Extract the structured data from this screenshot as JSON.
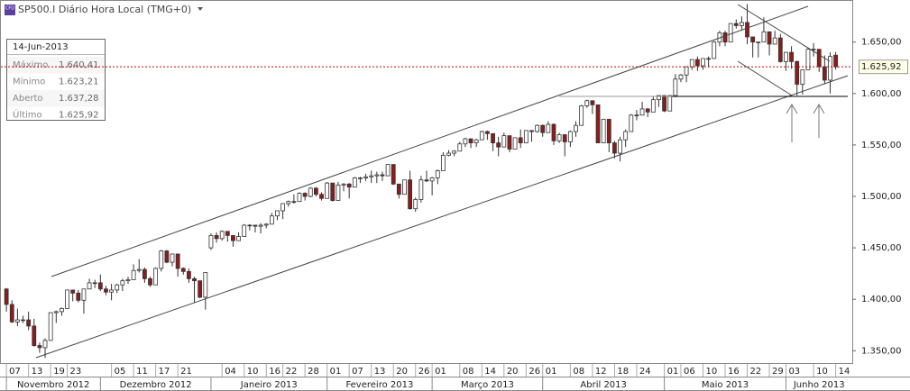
{
  "chart_data": {
    "type": "candlestick",
    "title": "SP500.I Diário Hora Local (TMG+0)",
    "icon_label": "CFD",
    "up_color": "#ffffff",
    "down_color": "#8b1c1c",
    "ylim": [
      1338,
      1690
    ],
    "yticks": [
      {
        "value": 1350,
        "label": "1.350,00"
      },
      {
        "value": 1400,
        "label": "1.400,00"
      },
      {
        "value": 1450,
        "label": "1.450,00"
      },
      {
        "value": 1500,
        "label": "1.500,00"
      },
      {
        "value": 1550,
        "label": "1.550,00"
      },
      {
        "value": 1600,
        "label": "1.600,00"
      },
      {
        "value": 1650,
        "label": "1.650,00"
      }
    ],
    "price_line": {
      "value": 1625.92,
      "label": "1.625,92",
      "color": "#cc0000"
    },
    "xlim": [
      -1,
      153
    ],
    "xticks": [
      {
        "value": 0,
        "label": "07"
      },
      {
        "value": 4,
        "label": "13"
      },
      {
        "value": 8,
        "label": "19"
      },
      {
        "value": 11,
        "label": "23"
      },
      {
        "value": 19,
        "label": "05"
      },
      {
        "value": 23,
        "label": "11"
      },
      {
        "value": 27,
        "label": "17"
      },
      {
        "value": 31,
        "label": "21"
      },
      {
        "value": 39,
        "label": "04"
      },
      {
        "value": 43,
        "label": "10"
      },
      {
        "value": 47,
        "label": "16"
      },
      {
        "value": 50,
        "label": "22"
      },
      {
        "value": 54,
        "label": "28"
      },
      {
        "value": 58,
        "label": "01"
      },
      {
        "value": 62,
        "label": "07"
      },
      {
        "value": 66,
        "label": "13"
      },
      {
        "value": 70,
        "label": "20"
      },
      {
        "value": 74,
        "label": "26"
      },
      {
        "value": 77,
        "label": "01"
      },
      {
        "value": 82,
        "label": "08"
      },
      {
        "value": 86,
        "label": "14"
      },
      {
        "value": 90,
        "label": "20"
      },
      {
        "value": 94,
        "label": "26"
      },
      {
        "value": 97,
        "label": "01"
      },
      {
        "value": 102,
        "label": "08"
      },
      {
        "value": 106,
        "label": "12"
      },
      {
        "value": 110,
        "label": "18"
      },
      {
        "value": 114,
        "label": "24"
      },
      {
        "value": 119,
        "label": "01"
      },
      {
        "value": 122,
        "label": "06"
      },
      {
        "value": 126,
        "label": "10"
      },
      {
        "value": 130,
        "label": "16"
      },
      {
        "value": 134,
        "label": "22"
      },
      {
        "value": 138,
        "label": "29"
      },
      {
        "value": 141,
        "label": "03"
      },
      {
        "value": 146,
        "label": "10"
      },
      {
        "value": 150,
        "label": "14"
      }
    ],
    "months": [
      {
        "value": 0,
        "label": "Novembro 2012"
      },
      {
        "value": 17,
        "label": "Dezembro 2012"
      },
      {
        "value": 37,
        "label": "Janeiro 2013"
      },
      {
        "value": 58,
        "label": "Fevereiro 2013"
      },
      {
        "value": 77,
        "label": "Março 2013"
      },
      {
        "value": 97,
        "label": "Abril 2013"
      },
      {
        "value": 119,
        "label": "Maio 2013"
      },
      {
        "value": 141,
        "label": "Junho 2013"
      }
    ],
    "ohlc": [
      [
        1410,
        1411,
        1388,
        1395
      ],
      [
        1395,
        1399,
        1377,
        1378
      ],
      [
        1378,
        1391,
        1374,
        1380
      ],
      [
        1380,
        1384,
        1377,
        1380
      ],
      [
        1380,
        1388,
        1370,
        1374
      ],
      [
        1374,
        1381,
        1354,
        1355
      ],
      [
        1355,
        1358,
        1348,
        1353
      ],
      [
        1353,
        1362,
        1343,
        1360
      ],
      [
        1360,
        1387,
        1360,
        1387
      ],
      [
        1387,
        1389,
        1377,
        1388
      ],
      [
        1388,
        1392,
        1384,
        1391
      ],
      [
        1391,
        1409,
        1391,
        1409
      ],
      [
        1409,
        1409,
        1398,
        1406
      ],
      [
        1406,
        1409,
        1397,
        1399
      ],
      [
        1399,
        1410,
        1386,
        1410
      ],
      [
        1410,
        1420,
        1410,
        1416
      ],
      [
        1416,
        1419,
        1411,
        1416
      ],
      [
        1416,
        1424,
        1408,
        1410
      ],
      [
        1410,
        1413,
        1404,
        1407
      ],
      [
        1407,
        1415,
        1399,
        1409
      ],
      [
        1409,
        1415,
        1406,
        1414
      ],
      [
        1414,
        1420,
        1408,
        1418
      ],
      [
        1418,
        1422,
        1415,
        1419
      ],
      [
        1419,
        1434,
        1419,
        1428
      ],
      [
        1428,
        1439,
        1426,
        1429
      ],
      [
        1429,
        1431,
        1416,
        1420
      ],
      [
        1420,
        1422,
        1412,
        1414
      ],
      [
        1414,
        1431,
        1414,
        1430
      ],
      [
        1430,
        1448,
        1427,
        1447
      ],
      [
        1447,
        1448,
        1435,
        1436
      ],
      [
        1436,
        1444,
        1432,
        1444
      ],
      [
        1444,
        1444,
        1422,
        1430
      ],
      [
        1430,
        1431,
        1424,
        1427
      ],
      [
        1427,
        1430,
        1416,
        1420
      ],
      [
        1420,
        1422,
        1397,
        1418
      ],
      [
        1418,
        1418,
        1401,
        1402
      ],
      [
        1402,
        1426,
        1390,
        1426
      ],
      [
        1450,
        1464,
        1448,
        1462
      ],
      [
        1462,
        1465,
        1455,
        1459
      ],
      [
        1459,
        1467,
        1457,
        1466
      ],
      [
        1466,
        1466,
        1456,
        1462
      ],
      [
        1462,
        1462,
        1451,
        1457
      ],
      [
        1457,
        1465,
        1457,
        1461
      ],
      [
        1461,
        1473,
        1461,
        1472
      ],
      [
        1472,
        1473,
        1467,
        1472
      ],
      [
        1472,
        1472,
        1465,
        1471
      ],
      [
        1471,
        1474,
        1464,
        1472
      ],
      [
        1472,
        1474,
        1469,
        1473
      ],
      [
        1473,
        1484,
        1473,
        1481
      ],
      [
        1481,
        1486,
        1477,
        1486
      ],
      [
        1486,
        1493,
        1478,
        1493
      ],
      [
        1493,
        1496,
        1490,
        1495
      ],
      [
        1495,
        1502,
        1493,
        1495
      ],
      [
        1495,
        1504,
        1495,
        1503
      ],
      [
        1503,
        1504,
        1496,
        1500
      ],
      [
        1500,
        1509,
        1499,
        1508
      ],
      [
        1508,
        1509,
        1500,
        1502
      ],
      [
        1502,
        1504,
        1496,
        1498
      ],
      [
        1498,
        1514,
        1498,
        1513
      ],
      [
        1513,
        1513,
        1495,
        1496
      ],
      [
        1496,
        1514,
        1496,
        1511
      ],
      [
        1511,
        1513,
        1505,
        1512
      ],
      [
        1512,
        1513,
        1498,
        1509
      ],
      [
        1509,
        1519,
        1509,
        1518
      ],
      [
        1518,
        1519,
        1513,
        1518
      ],
      [
        1518,
        1522,
        1515,
        1519
      ],
      [
        1519,
        1525,
        1513,
        1520
      ],
      [
        1520,
        1524,
        1513,
        1521
      ],
      [
        1521,
        1524,
        1515,
        1520
      ],
      [
        1520,
        1531,
        1520,
        1531
      ],
      [
        1531,
        1531,
        1511,
        1512
      ],
      [
        1512,
        1512,
        1498,
        1502
      ],
      [
        1502,
        1516,
        1502,
        1516
      ],
      [
        1516,
        1525,
        1487,
        1488
      ],
      [
        1488,
        1499,
        1485,
        1497
      ],
      [
        1497,
        1520,
        1494,
        1516
      ],
      [
        1516,
        1525,
        1514,
        1515
      ],
      [
        1515,
        1519,
        1501,
        1518
      ],
      [
        1518,
        1526,
        1512,
        1525
      ],
      [
        1525,
        1543,
        1525,
        1540
      ],
      [
        1540,
        1545,
        1539,
        1542
      ],
      [
        1542,
        1545,
        1539,
        1544
      ],
      [
        1544,
        1553,
        1544,
        1551
      ],
      [
        1551,
        1557,
        1548,
        1556
      ],
      [
        1556,
        1556,
        1547,
        1552
      ],
      [
        1552,
        1556,
        1548,
        1555
      ],
      [
        1555,
        1564,
        1555,
        1563
      ],
      [
        1563,
        1564,
        1555,
        1561
      ],
      [
        1561,
        1561,
        1544,
        1552
      ],
      [
        1552,
        1558,
        1539,
        1548
      ],
      [
        1548,
        1562,
        1548,
        1559
      ],
      [
        1559,
        1559,
        1543,
        1546
      ],
      [
        1546,
        1557,
        1546,
        1557
      ],
      [
        1557,
        1565,
        1547,
        1552
      ],
      [
        1552,
        1564,
        1552,
        1564
      ],
      [
        1564,
        1564,
        1553,
        1563
      ],
      [
        1563,
        1570,
        1562,
        1569
      ],
      [
        1569,
        1570,
        1558,
        1562
      ],
      [
        1562,
        1573,
        1562,
        1570
      ],
      [
        1570,
        1571,
        1550,
        1554
      ],
      [
        1554,
        1562,
        1552,
        1560
      ],
      [
        1560,
        1560,
        1539,
        1553
      ],
      [
        1553,
        1564,
        1548,
        1563
      ],
      [
        1563,
        1573,
        1558,
        1569
      ],
      [
        1569,
        1589,
        1569,
        1588
      ],
      [
        1588,
        1594,
        1586,
        1593
      ],
      [
        1593,
        1593,
        1580,
        1589
      ],
      [
        1589,
        1589,
        1552,
        1552
      ],
      [
        1552,
        1575,
        1552,
        1575
      ],
      [
        1575,
        1575,
        1543,
        1552
      ],
      [
        1552,
        1554,
        1537,
        1542
      ],
      [
        1542,
        1558,
        1534,
        1555
      ],
      [
        1555,
        1565,
        1548,
        1563
      ],
      [
        1563,
        1580,
        1563,
        1579
      ],
      [
        1579,
        1584,
        1574,
        1579
      ],
      [
        1579,
        1592,
        1579,
        1585
      ],
      [
        1585,
        1586,
        1577,
        1582
      ],
      [
        1582,
        1597,
        1582,
        1594
      ],
      [
        1594,
        1598,
        1587,
        1598
      ],
      [
        1598,
        1598,
        1582,
        1583
      ],
      [
        1583,
        1598,
        1583,
        1598
      ],
      [
        1598,
        1619,
        1598,
        1614
      ],
      [
        1614,
        1619,
        1611,
        1618
      ],
      [
        1618,
        1626,
        1611,
        1626
      ],
      [
        1626,
        1633,
        1623,
        1633
      ],
      [
        1633,
        1636,
        1622,
        1627
      ],
      [
        1627,
        1634,
        1623,
        1634
      ],
      [
        1634,
        1636,
        1626,
        1634
      ],
      [
        1634,
        1651,
        1634,
        1650
      ],
      [
        1650,
        1661,
        1646,
        1659
      ],
      [
        1659,
        1661,
        1646,
        1650
      ],
      [
        1650,
        1668,
        1650,
        1668
      ],
      [
        1668,
        1672,
        1663,
        1666
      ],
      [
        1666,
        1675,
        1662,
        1669
      ],
      [
        1669,
        1687,
        1648,
        1655
      ],
      [
        1655,
        1655,
        1635,
        1650
      ],
      [
        1650,
        1650,
        1635,
        1650
      ],
      [
        1650,
        1674,
        1650,
        1660
      ],
      [
        1660,
        1660,
        1637,
        1648
      ],
      [
        1648,
        1661,
        1648,
        1654
      ],
      [
        1654,
        1658,
        1630,
        1631
      ],
      [
        1631,
        1640,
        1622,
        1640
      ],
      [
        1640,
        1646,
        1624,
        1631
      ],
      [
        1631,
        1632,
        1598,
        1609
      ],
      [
        1609,
        1623,
        1599,
        1623
      ],
      [
        1623,
        1644,
        1623,
        1643
      ],
      [
        1643,
        1649,
        1636,
        1643
      ],
      [
        1643,
        1643,
        1621,
        1626
      ],
      [
        1626,
        1637,
        1609,
        1613
      ],
      [
        1613,
        1640,
        1600,
        1636
      ],
      [
        1637.28,
        1640.41,
        1623.21,
        1625.92
      ]
    ]
  },
  "info": {
    "date": "14-Jun-2013",
    "rows": [
      [
        "Máximo",
        "1.640,41"
      ],
      [
        "Mínimo",
        "1.623,21"
      ],
      [
        "Aberto",
        "1.637,28"
      ],
      [
        "Último",
        "1.625,92"
      ]
    ]
  }
}
